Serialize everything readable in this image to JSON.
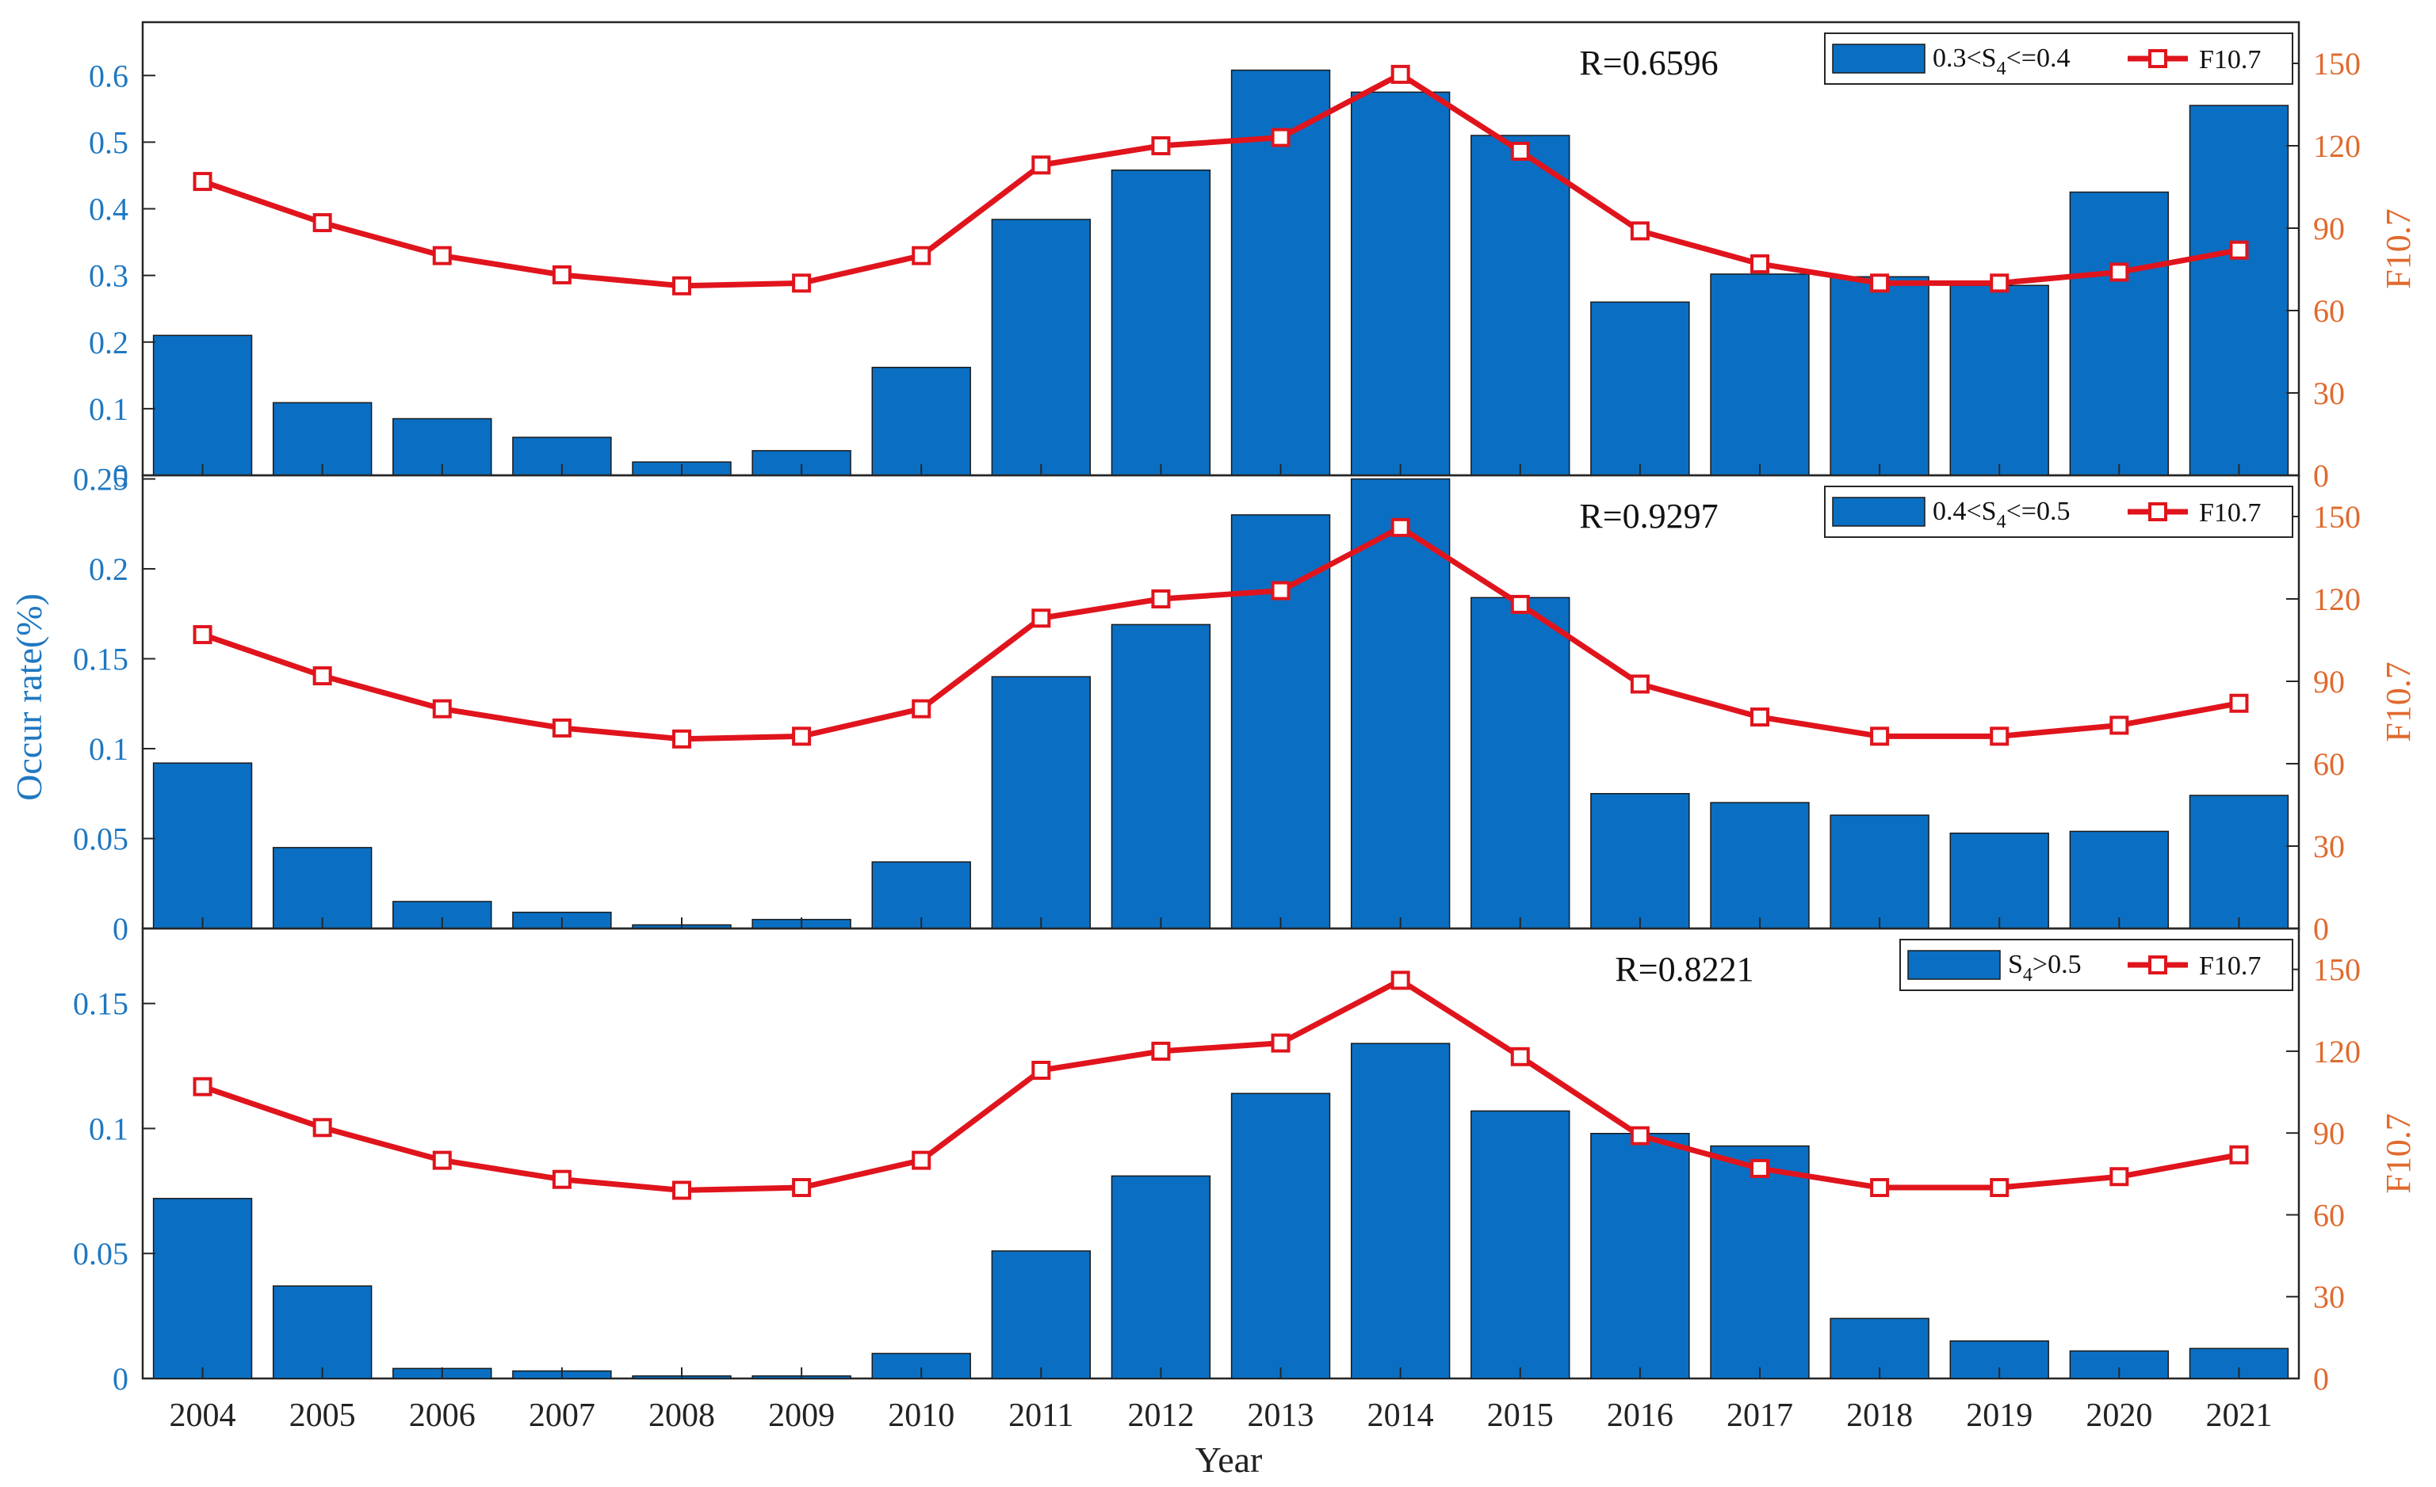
{
  "chart_data": {
    "type": "bar",
    "x": [
      "2004",
      "2005",
      "2006",
      "2007",
      "2008",
      "2009",
      "2010",
      "2011",
      "2012",
      "2013",
      "2014",
      "2015",
      "2016",
      "2017",
      "2018",
      "2019",
      "2020",
      "2021"
    ],
    "xlabel": "Year",
    "ylabel": "Occur rate(%)",
    "ylabel_right": "F10.7",
    "f107": [
      107,
      92,
      80,
      73,
      69,
      70,
      80,
      113,
      120,
      123,
      146,
      118,
      89,
      77,
      70,
      70,
      74,
      82
    ],
    "colors": {
      "bar": "#0a6fc2",
      "line": "#e0141c",
      "left_axis": "#1f78c1",
      "right_axis": "#e06a2e"
    },
    "panels": [
      {
        "r_label": "R=0.6596",
        "legend_bar": {
          "pre": "0.3<S",
          "sub": "4",
          "post": "<=0.4"
        },
        "legend_line": "F10.7",
        "values": [
          0.21,
          0.109,
          0.085,
          0.057,
          0.02,
          0.037,
          0.162,
          0.384,
          0.458,
          0.608,
          0.575,
          0.51,
          0.26,
          0.302,
          0.298,
          0.285,
          0.425,
          0.555
        ],
        "ylim": [
          0,
          0.68
        ],
        "yticks": [
          "0",
          "0.1",
          "0.2",
          "0.3",
          "0.4",
          "0.5",
          "0.6"
        ],
        "yticks_right": [
          "0",
          "30",
          "60",
          "90",
          "120",
          "150"
        ]
      },
      {
        "r_label": "R=0.9297",
        "legend_bar": {
          "pre": "0.4<S",
          "sub": "4",
          "post": "<=0.5"
        },
        "legend_line": "F10.7",
        "values": [
          0.092,
          0.045,
          0.015,
          0.009,
          0.002,
          0.005,
          0.037,
          0.14,
          0.169,
          0.23,
          0.25,
          0.184,
          0.075,
          0.07,
          0.063,
          0.053,
          0.054,
          0.074
        ],
        "ylim": [
          0,
          0.252
        ],
        "yticks": [
          "0",
          "0.05",
          "0.1",
          "0.15",
          "0.2",
          "0.25"
        ],
        "yticks_right": [
          "0",
          "30",
          "60",
          "90",
          "120",
          "150"
        ]
      },
      {
        "r_label": "R=0.8221",
        "legend_bar": {
          "pre": "S",
          "sub": "4",
          "post": ">0.5"
        },
        "legend_line": "F10.7",
        "values": [
          0.072,
          0.037,
          0.004,
          0.003,
          0.001,
          0.001,
          0.01,
          0.051,
          0.081,
          0.114,
          0.134,
          0.107,
          0.098,
          0.093,
          0.024,
          0.015,
          0.011,
          0.012
        ],
        "ylim": [
          0,
          0.18
        ],
        "yticks": [
          "0",
          "0.05",
          "0.1",
          "0.15"
        ],
        "yticks_right": [
          "0",
          "30",
          "60",
          "90",
          "120",
          "150"
        ]
      }
    ],
    "ylim_right": [
      0,
      165
    ]
  }
}
